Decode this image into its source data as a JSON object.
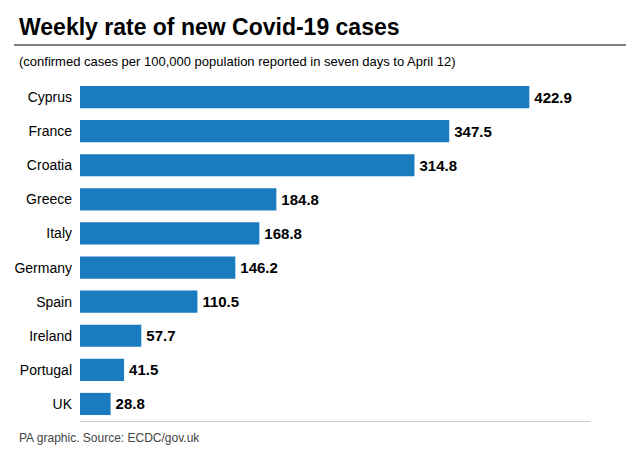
{
  "chart_data": {
    "type": "bar",
    "orientation": "horizontal",
    "title": "Weekly rate of new Covid-19 cases",
    "subtitle": "(confirmed cases per 100,000 population reported in seven days to April 12)",
    "source": "PA graphic. Source: ECDC/gov.uk",
    "categories": [
      "Cyprus",
      "France",
      "Croatia",
      "Greece",
      "Italy",
      "Germany",
      "Spain",
      "Ireland",
      "Portugal",
      "UK"
    ],
    "values": [
      422.9,
      347.5,
      314.8,
      184.8,
      168.8,
      146.2,
      110.5,
      57.7,
      41.5,
      28.8
    ],
    "color": "#1b7bbf",
    "xlim": [
      0,
      480
    ],
    "grid": false,
    "data_labels": true,
    "tick_labels": "y"
  }
}
